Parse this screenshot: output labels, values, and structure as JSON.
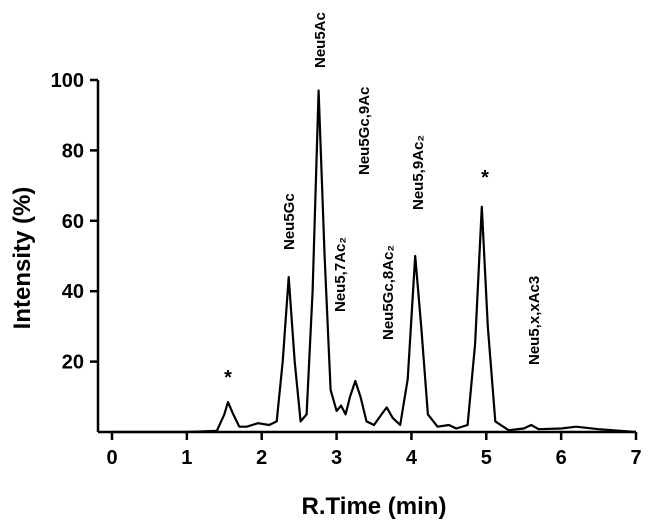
{
  "chart_data": {
    "type": "line",
    "xlabel": "R.Time (min)",
    "ylabel": "Intensity (%)",
    "x": [
      0,
      1.0,
      1.4,
      1.5,
      1.55,
      1.62,
      1.7,
      1.8,
      1.95,
      2.1,
      2.2,
      2.28,
      2.36,
      2.44,
      2.52,
      2.6,
      2.68,
      2.76,
      2.84,
      2.92,
      3.0,
      3.06,
      3.12,
      3.18,
      3.25,
      3.32,
      3.4,
      3.5,
      3.6,
      3.67,
      3.75,
      3.85,
      3.95,
      4.05,
      4.13,
      4.22,
      4.35,
      4.5,
      4.6,
      4.75,
      4.85,
      4.94,
      5.02,
      5.12,
      5.3,
      5.5,
      5.6,
      5.7,
      6.0,
      6.2,
      6.5,
      7.0
    ],
    "series": [
      {
        "color": "#000000",
        "values": [
          0,
          0,
          0.3,
          5,
          8.5,
          5,
          1.5,
          1.5,
          2.5,
          2,
          3,
          20,
          44,
          20,
          3,
          5,
          40,
          97,
          50,
          12,
          6,
          7.5,
          5,
          10,
          14.5,
          10,
          3,
          2,
          5,
          7,
          4,
          2,
          15,
          50,
          30,
          5,
          1.5,
          2,
          1,
          2,
          25,
          64,
          30,
          3,
          0.5,
          1,
          2,
          0.8,
          1,
          1.5,
          0.8,
          0
        ]
      }
    ],
    "xlim": [
      0,
      7
    ],
    "xticks": [
      0,
      1,
      2,
      3,
      4,
      5,
      6,
      7
    ],
    "ylim": [
      0,
      100
    ],
    "yticks": [
      20,
      40,
      60,
      80,
      100
    ],
    "annotations": [
      "*",
      "Neu5Gc",
      "Neu5Ac",
      "Neu5,7Ac₂",
      "Neu5Gc,9Ac",
      "Neu5Gc,8Ac₂",
      "Neu5,9Ac₂",
      "*",
      "Neu5,x,xAc3"
    ]
  }
}
